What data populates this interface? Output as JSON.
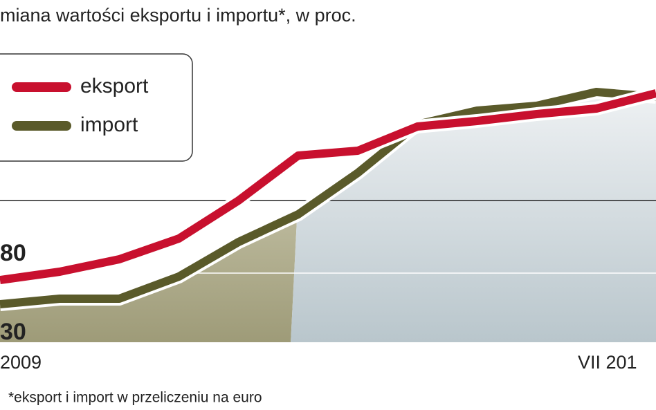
{
  "chart_data": {
    "type": "line",
    "title": "miana wartości eksportu i importu*, w proc.",
    "categories": [
      null,
      null,
      null,
      null,
      null,
      null,
      null,
      null,
      null,
      null,
      null,
      null
    ],
    "series": [
      {
        "name": "eksport",
        "color": "#c8102e",
        "values": [
          22.5,
          25.5,
          30,
          37.5,
          51.25,
          67.5,
          69.25,
          78,
          80,
          82.5,
          84.5,
          90
        ]
      },
      {
        "name": "import",
        "color": "#5a5a2a",
        "values": [
          13.75,
          15.75,
          15.75,
          23.75,
          36.25,
          46.25,
          61.25,
          78.75,
          83.75,
          85.5,
          90.5,
          88.75
        ]
      }
    ],
    "ylim": [
      0,
      100
    ],
    "annotations": [
      "80",
      "30",
      "2009",
      "VII 201"
    ],
    "footnote": "*eksport i import w przeliczeniu na euro"
  }
}
